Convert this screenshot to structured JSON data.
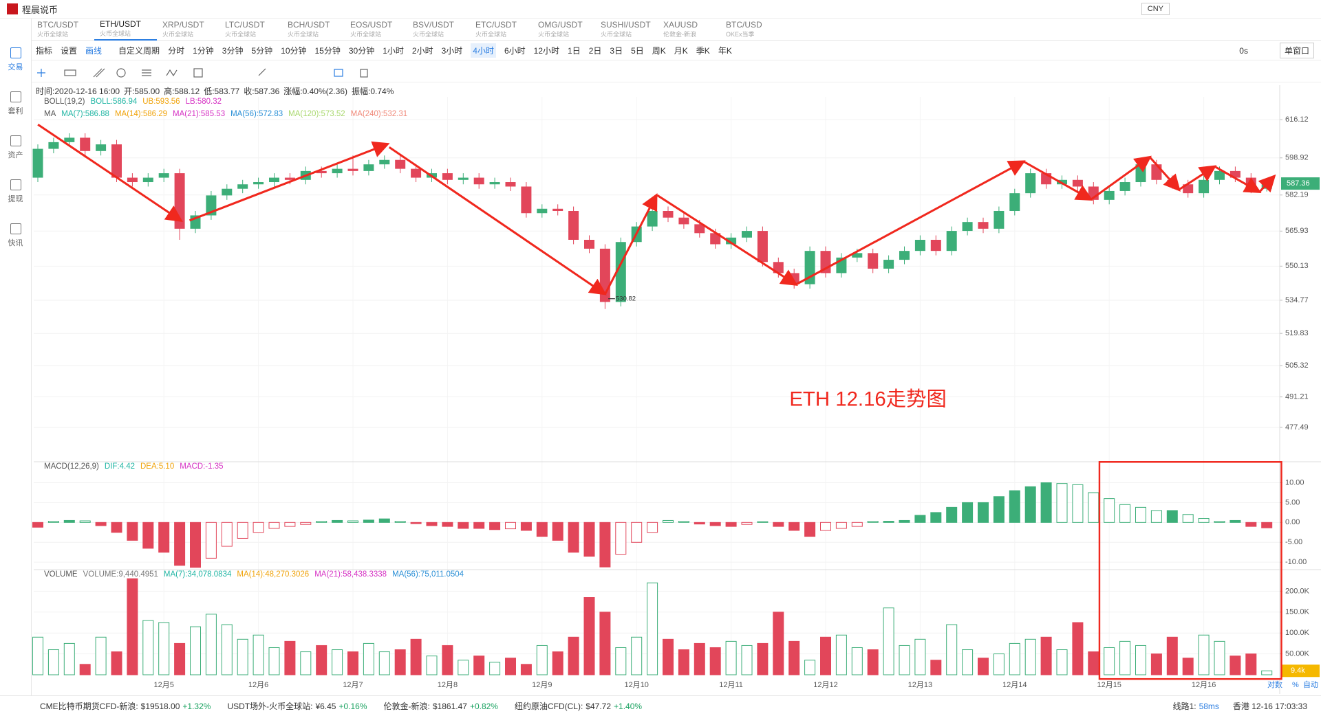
{
  "app": {
    "title": "程晨说币",
    "currency": "CNY"
  },
  "tabs": [
    {
      "pair": "BTC/USDT",
      "exchange": "火币全球站"
    },
    {
      "pair": "ETH/USDT",
      "exchange": "火币全球站"
    },
    {
      "pair": "XRP/USDT",
      "exchange": "火币全球站"
    },
    {
      "pair": "LTC/USDT",
      "exchange": "火币全球站"
    },
    {
      "pair": "BCH/USDT",
      "exchange": "火币全球站"
    },
    {
      "pair": "EOS/USDT",
      "exchange": "火币全球站"
    },
    {
      "pair": "BSV/USDT",
      "exchange": "火币全球站"
    },
    {
      "pair": "ETC/USDT",
      "exchange": "火币全球站"
    },
    {
      "pair": "OMG/USDT",
      "exchange": "火币全球站"
    },
    {
      "pair": "SUSHI/USDT",
      "exchange": "火币全球站"
    },
    {
      "pair": "XAUUSD",
      "exchange": "伦敦金-新浪"
    },
    {
      "pair": "BTC/USD",
      "exchange": "OKEx当季"
    }
  ],
  "active_tab": 1,
  "sidebar": [
    "交易",
    "套利",
    "资产",
    "提现",
    "快讯"
  ],
  "toolbar": {
    "items": [
      "指标",
      "设置",
      "画线"
    ],
    "custom": "自定义周期",
    "periods": [
      "分时",
      "1分钟",
      "3分钟",
      "5分钟",
      "10分钟",
      "15分钟",
      "30分钟",
      "1小时",
      "2小时",
      "3小时",
      "4小时",
      "6小时",
      "12小时",
      "1日",
      "2日",
      "3日",
      "5日",
      "周K",
      "月K",
      "季K",
      "年K"
    ],
    "active_period": 10,
    "timer": "0s",
    "window": "单窗口"
  },
  "info": [
    "时间:2020-12-16 16:00",
    "开:585.00",
    "高:588.12",
    "低:583.77",
    "收:587.36",
    "涨幅:0.40%(2.36)",
    "振幅:0.74%"
  ],
  "chart": {
    "colors": {
      "up": "#3cae78",
      "down": "#e2465a"
    },
    "dates": [
      "12月5",
      "12月6",
      "12月7",
      "12月8",
      "12月9",
      "12月10",
      "12月11",
      "12月12",
      "12月13",
      "12月14",
      "12月15",
      "12月16"
    ],
    "annotation": "ETH 12.16走势图",
    "main": {
      "ylim": [
        462.3,
        626.4
      ],
      "yticks": [
        616.12,
        598.92,
        582.19,
        565.93,
        550.13,
        534.77,
        519.83,
        505.32,
        491.21,
        477.49
      ],
      "legends": [
        {
          "title": "BOLL(19,2)",
          "items": [
            {
              "text": "BOLL:586.94",
              "color": "#1fb5a3"
            },
            {
              "text": "UB:593.56",
              "color": "#f0a30a"
            },
            {
              "text": "LB:580.32",
              "color": "#d633c4"
            }
          ]
        },
        {
          "title": "MA",
          "items": [
            {
              "text": "MA(7):586.88",
              "color": "#1fb5a3"
            },
            {
              "text": "MA(14):586.29",
              "color": "#f0a30a"
            },
            {
              "text": "MA(21):585.53",
              "color": "#d633c4"
            },
            {
              "text": "MA(56):572.83",
              "color": "#2a8fd6"
            },
            {
              "text": "MA(120):573.52",
              "color": "#a9d86e"
            },
            {
              "text": "MA(240):532.31",
              "color": "#f08a7a"
            }
          ]
        }
      ],
      "candles": [
        [
          590,
          605,
          588,
          603
        ],
        [
          603,
          608,
          601,
          606
        ],
        [
          606,
          610,
          604,
          608
        ],
        [
          608,
          610,
          600,
          602
        ],
        [
          602,
          607,
          600,
          605
        ],
        [
          605,
          607,
          588,
          590
        ],
        [
          590,
          592,
          586,
          588
        ],
        [
          588,
          592,
          586,
          590
        ],
        [
          590,
          594,
          588,
          592
        ],
        [
          592,
          594,
          562,
          567
        ],
        [
          567,
          575,
          565,
          573
        ],
        [
          573,
          584,
          571,
          582
        ],
        [
          582,
          587,
          580,
          585
        ],
        [
          585,
          589,
          583,
          587
        ],
        [
          587,
          590,
          585,
          588
        ],
        [
          588,
          592,
          586,
          590
        ],
        [
          590,
          592,
          587,
          589
        ],
        [
          589,
          595,
          587,
          593
        ],
        [
          593,
          595,
          590,
          592
        ],
        [
          592,
          596,
          590,
          594
        ],
        [
          594,
          600,
          591,
          593
        ],
        [
          593,
          598,
          591,
          596
        ],
        [
          596,
          600,
          594,
          598
        ],
        [
          598,
          600,
          592,
          594
        ],
        [
          594,
          596,
          588,
          590
        ],
        [
          590,
          594,
          588,
          592
        ],
        [
          592,
          594,
          587,
          589
        ],
        [
          589,
          592,
          587,
          590
        ],
        [
          590,
          592,
          585,
          587
        ],
        [
          587,
          590,
          585,
          588
        ],
        [
          588,
          590,
          584,
          586
        ],
        [
          586,
          588,
          572,
          574
        ],
        [
          574,
          578,
          572,
          576
        ],
        [
          576,
          578,
          573,
          575
        ],
        [
          575,
          577,
          560,
          562
        ],
        [
          562,
          564,
          556,
          558
        ],
        [
          558,
          560,
          530.82,
          534
        ],
        [
          534,
          563,
          532,
          561
        ],
        [
          561,
          570,
          559,
          568
        ],
        [
          568,
          577,
          566,
          575
        ],
        [
          575,
          577,
          570,
          572
        ],
        [
          572,
          574,
          567,
          569
        ],
        [
          569,
          571,
          563,
          565
        ],
        [
          565,
          567,
          558,
          560
        ],
        [
          560,
          565,
          558,
          563
        ],
        [
          563,
          568,
          561,
          566
        ],
        [
          566,
          568,
          550,
          552
        ],
        [
          552,
          554,
          545,
          547
        ],
        [
          547,
          549,
          540,
          542
        ],
        [
          542,
          559,
          540,
          557
        ],
        [
          557,
          559,
          545,
          547
        ],
        [
          547,
          556,
          545,
          554
        ],
        [
          554,
          558,
          552,
          556
        ],
        [
          556,
          558,
          547,
          549
        ],
        [
          549,
          555,
          547,
          553
        ],
        [
          553,
          559,
          551,
          557
        ],
        [
          557,
          564,
          555,
          562
        ],
        [
          562,
          564,
          555,
          557
        ],
        [
          557,
          568,
          555,
          566
        ],
        [
          566,
          572,
          564,
          570
        ],
        [
          570,
          572,
          565,
          567
        ],
        [
          567,
          577,
          565,
          575
        ],
        [
          575,
          585,
          573,
          583
        ],
        [
          583,
          594,
          581,
          592
        ],
        [
          592,
          594,
          585,
          587
        ],
        [
          587,
          591,
          585,
          589
        ],
        [
          589,
          591,
          584,
          586
        ],
        [
          586,
          588,
          578,
          580
        ],
        [
          580,
          586,
          578,
          584
        ],
        [
          584,
          590,
          582,
          588
        ],
        [
          588,
          598,
          586,
          596
        ],
        [
          596,
          598,
          587,
          589
        ],
        [
          589,
          591,
          585,
          587
        ],
        [
          587,
          589,
          581,
          583
        ],
        [
          583,
          591,
          581,
          589
        ],
        [
          589,
          595,
          587,
          593
        ],
        [
          593,
          595,
          588,
          590
        ],
        [
          590,
          592,
          583,
          585
        ],
        [
          585,
          588.12,
          583.77,
          587.36
        ]
      ]
    },
    "macd": {
      "ylim": [
        -11.7,
        15.1
      ],
      "yticks": [
        {
          "value": 10,
          "label": "10.00"
        },
        {
          "value": 5,
          "label": "5.00"
        },
        {
          "value": 0,
          "label": "0.00"
        },
        {
          "value": -5,
          "label": "-5.00"
        },
        {
          "value": -10,
          "label": "-10.00"
        }
      ],
      "legends": [
        {
          "title": "MACD(12,26,9)",
          "items": [
            {
              "text": "DIF:4.42",
              "color": "#1fb5a3"
            },
            {
              "text": "DEA:5.10",
              "color": "#f0a30a"
            },
            {
              "text": "MACD:-1.35",
              "color": "#d633c4"
            }
          ]
        }
      ],
      "values": [
        -1.2,
        0.3,
        0.5,
        0.4,
        -0.8,
        -2.5,
        -4.5,
        -6.5,
        -7.5,
        -10.8,
        -11.3,
        -9,
        -6,
        -4,
        -2.5,
        -1.5,
        -1,
        -0.5,
        0.3,
        0.5,
        0.4,
        0.6,
        0.9,
        0.3,
        -0.3,
        -0.8,
        -1,
        -1.5,
        -1.5,
        -1.8,
        -1.6,
        -2,
        -3.5,
        -4.5,
        -7.5,
        -8.5,
        -11.2,
        -8,
        -5,
        -2.5,
        0.5,
        0.3,
        -0.4,
        -0.8,
        -1,
        -0.5,
        0.2,
        -1,
        -2,
        -3.5,
        -2,
        -1.5,
        -1,
        0.3,
        0.3,
        0.5,
        1.8,
        2.5,
        3.8,
        5,
        5,
        6.5,
        8,
        9,
        10,
        9.8,
        9.5,
        7.5,
        6,
        4.5,
        3.8,
        3,
        3,
        2,
        1,
        0.3,
        0.5,
        -1,
        -1.35
      ]
    },
    "volume": {
      "ylim": [
        0,
        250000
      ],
      "yticks": [
        {
          "value": 200000,
          "label": "200.0K"
        },
        {
          "value": 150000,
          "label": "150.0K"
        },
        {
          "value": 100000,
          "label": "100.0K"
        },
        {
          "value": 50000,
          "label": "50.00K"
        }
      ],
      "legends": [
        {
          "title": "VOLUME",
          "items": [
            {
              "text": "VOLUME:9,440.4951",
              "color": "#777777"
            },
            {
              "text": "MA(7):34,078.0834",
              "color": "#1fb5a3"
            },
            {
              "text": "MA(14):48,270.3026",
              "color": "#f0a30a"
            },
            {
              "text": "MA(21):58,438.3338",
              "color": "#d633c4"
            },
            {
              "text": "MA(56):75,011.0504",
              "color": "#2a8fd6"
            }
          ]
        }
      ],
      "values": [
        90000,
        60000,
        75000,
        25000,
        90000,
        55000,
        230000,
        130000,
        125000,
        75000,
        115000,
        145000,
        120000,
        85000,
        95000,
        65000,
        80000,
        55000,
        70000,
        60000,
        55000,
        75000,
        55000,
        60000,
        85000,
        45000,
        70000,
        35000,
        45000,
        30000,
        40000,
        25000,
        70000,
        55000,
        90000,
        185000,
        150000,
        65000,
        90000,
        220000,
        85000,
        60000,
        75000,
        65000,
        80000,
        70000,
        75000,
        150000,
        80000,
        35000,
        90000,
        95000,
        65000,
        60000,
        160000,
        70000,
        85000,
        35000,
        120000,
        60000,
        40000,
        50000,
        75000,
        85000,
        90000,
        60000,
        125000,
        55000,
        65000,
        80000,
        70000,
        50000,
        90000,
        40000,
        95000,
        80000,
        45000,
        50000,
        9440.4951
      ],
      "current_label": "9.4k"
    },
    "axis_modes": [
      "对数",
      "%",
      "自动"
    ]
  },
  "status": {
    "tickers": [
      {
        "name": "CME比特币期货CFD-新浪:",
        "price": "$19518.00",
        "change": "+1.32%"
      },
      {
        "name": "USDT场外-火币全球站:",
        "price": "¥6.45",
        "change": "+0.16%"
      },
      {
        "name": "伦敦金-新浪:",
        "price": "$1861.47",
        "change": "+0.82%"
      },
      {
        "name": "纽约原油CFD(CL):",
        "price": "$47.72",
        "change": "+1.40%"
      }
    ],
    "line": "线路1:",
    "latency": "58ms",
    "clock": "香港 12-16 17:03:33"
  }
}
